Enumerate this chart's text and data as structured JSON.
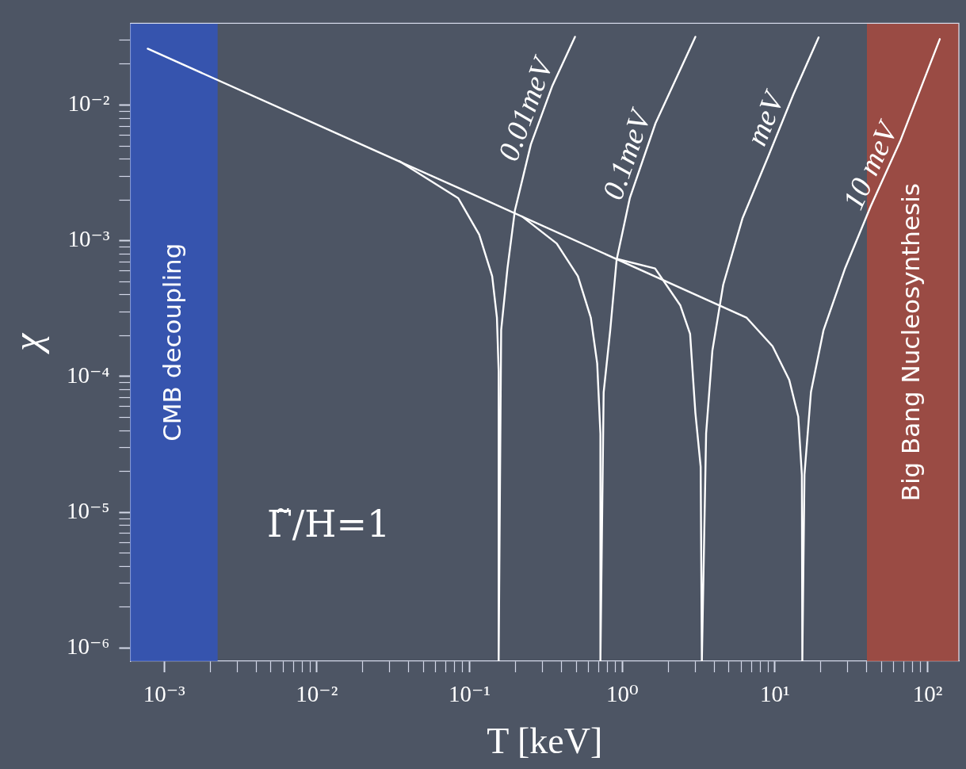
{
  "chart_data": {
    "type": "line",
    "xlabel": "T [keV]",
    "ylabel": "χ",
    "log": "xy",
    "legend": false,
    "marker": "none",
    "line_style": "solid",
    "xlim": [
      0.0006,
      160
    ],
    "ylim": [
      8e-07,
      0.04
    ],
    "xticks": [
      {
        "value": 0.001,
        "label": "10⁻³"
      },
      {
        "value": 0.002,
        "label": null
      },
      {
        "value": 0.003,
        "label": null
      },
      {
        "value": 0.004,
        "label": null
      },
      {
        "value": 0.005,
        "label": null
      },
      {
        "value": 0.006,
        "label": null
      },
      {
        "value": 0.007,
        "label": null
      },
      {
        "value": 0.008,
        "label": null
      },
      {
        "value": 0.009,
        "label": null
      },
      {
        "value": 0.01,
        "label": "10⁻²"
      },
      {
        "value": 0.02,
        "label": null
      },
      {
        "value": 0.03,
        "label": null
      },
      {
        "value": 0.04,
        "label": null
      },
      {
        "value": 0.05,
        "label": null
      },
      {
        "value": 0.06,
        "label": null
      },
      {
        "value": 0.07,
        "label": null
      },
      {
        "value": 0.08,
        "label": null
      },
      {
        "value": 0.09,
        "label": null
      },
      {
        "value": 0.1,
        "label": "10⁻¹"
      },
      {
        "value": 0.2,
        "label": null
      },
      {
        "value": 0.3,
        "label": null
      },
      {
        "value": 0.4,
        "label": null
      },
      {
        "value": 0.5,
        "label": null
      },
      {
        "value": 0.6,
        "label": null
      },
      {
        "value": 0.7,
        "label": null
      },
      {
        "value": 0.8,
        "label": null
      },
      {
        "value": 0.9,
        "label": null
      },
      {
        "value": 1,
        "label": "10⁰"
      },
      {
        "value": 2,
        "label": null
      },
      {
        "value": 3,
        "label": null
      },
      {
        "value": 4,
        "label": null
      },
      {
        "value": 5,
        "label": null
      },
      {
        "value": 6,
        "label": null
      },
      {
        "value": 7,
        "label": null
      },
      {
        "value": 8,
        "label": null
      },
      {
        "value": 9,
        "label": null
      },
      {
        "value": 10,
        "label": "10¹"
      },
      {
        "value": 20,
        "label": null
      },
      {
        "value": 30,
        "label": null
      },
      {
        "value": 40,
        "label": null
      },
      {
        "value": 50,
        "label": null
      },
      {
        "value": 60,
        "label": null
      },
      {
        "value": 70,
        "label": null
      },
      {
        "value": 80,
        "label": null
      },
      {
        "value": 90,
        "label": null
      },
      {
        "value": 100,
        "label": "10²"
      }
    ],
    "yticks": [
      {
        "value": 1e-06,
        "label": "10⁻⁶"
      },
      {
        "value": 2e-06,
        "label": null
      },
      {
        "value": 3e-06,
        "label": null
      },
      {
        "value": 4e-06,
        "label": null
      },
      {
        "value": 5e-06,
        "label": null
      },
      {
        "value": 6e-06,
        "label": null
      },
      {
        "value": 7e-06,
        "label": null
      },
      {
        "value": 8e-06,
        "label": null
      },
      {
        "value": 9e-06,
        "label": null
      },
      {
        "value": 1e-05,
        "label": "10⁻⁵"
      },
      {
        "value": 2e-05,
        "label": null
      },
      {
        "value": 3e-05,
        "label": null
      },
      {
        "value": 4e-05,
        "label": null
      },
      {
        "value": 5e-05,
        "label": null
      },
      {
        "value": 6e-05,
        "label": null
      },
      {
        "value": 7e-05,
        "label": null
      },
      {
        "value": 8e-05,
        "label": null
      },
      {
        "value": 9e-05,
        "label": null
      },
      {
        "value": 0.0001,
        "label": "10⁻⁴"
      },
      {
        "value": 0.0002,
        "label": null
      },
      {
        "value": 0.0003,
        "label": null
      },
      {
        "value": 0.0004,
        "label": null
      },
      {
        "value": 0.0005,
        "label": null
      },
      {
        "value": 0.0006,
        "label": null
      },
      {
        "value": 0.0007,
        "label": null
      },
      {
        "value": 0.0008,
        "label": null
      },
      {
        "value": 0.0009,
        "label": null
      },
      {
        "value": 0.001,
        "label": "10⁻³"
      },
      {
        "value": 0.002,
        "label": null
      },
      {
        "value": 0.003,
        "label": null
      },
      {
        "value": 0.004,
        "label": null
      },
      {
        "value": 0.005,
        "label": null
      },
      {
        "value": 0.006,
        "label": null
      },
      {
        "value": 0.007,
        "label": null
      },
      {
        "value": 0.008,
        "label": null
      },
      {
        "value": 0.009,
        "label": null
      },
      {
        "value": 0.01,
        "label": "10⁻²"
      },
      {
        "value": 0.02,
        "label": null
      },
      {
        "value": 0.03,
        "label": null
      }
    ],
    "bands": [
      {
        "axis": "x",
        "from": 0.0006,
        "to": 0.00224,
        "label": "CMB decoupling",
        "color": "#3355bb"
      },
      {
        "axis": "x",
        "from": 40,
        "to": 160,
        "label": "Big Bang Nucleosynthesis",
        "color": "#a84a3e"
      }
    ],
    "annotations": [
      "Γ̃/H=1"
    ],
    "series": [
      {
        "name": "0.01meV",
        "color": "#ffffff",
        "x": [
          0.0347,
          0.0843,
          0.1156,
          0.1406,
          0.151,
          0.155,
          0.155,
          0.161,
          0.177,
          0.198,
          0.252,
          0.347,
          0.49
        ],
        "values": [
          0.00386,
          0.00206,
          0.00111,
          0.000548,
          0.000272,
          0.000109,
          8e-07,
          0.00022,
          0.000626,
          0.00167,
          0.00513,
          0.0137,
          0.0318
        ]
      },
      {
        "name": "0.1meV",
        "color": "#ffffff",
        "x": [
          0.221,
          0.372,
          0.512,
          0.622,
          0.685,
          0.719,
          0.719,
          0.755,
          0.834,
          0.918,
          1.12,
          1.65,
          3.01
        ],
        "values": [
          0.00151,
          0.000955,
          0.000548,
          0.000272,
          0.000125,
          3.79e-05,
          8e-07,
          7.64e-05,
          0.00022,
          0.000724,
          0.00206,
          0.00734,
          0.0318
        ]
      },
      {
        "name": "meV",
        "color": "#ffffff",
        "x": [
          0.929,
          1.64,
          2.4,
          2.78,
          3.01,
          3.26,
          3.32,
          3.54,
          3.89,
          4.58,
          6.12,
          9.02,
          13.2,
          19.3
        ],
        "values": [
          0.000734,
          0.000626,
          0.000334,
          0.000206,
          5.41e-05,
          2.17e-05,
          8e-07,
          3.81e-05,
          0.000155,
          0.000474,
          0.00146,
          0.00417,
          0.012,
          0.0315
        ]
      },
      {
        "name": "10 meV",
        "color": "#ffffff",
        "x": [
          0.00078,
          0.092,
          6.5,
          9.64,
          12.4,
          14.2,
          15,
          15.1,
          15.6,
          17.2,
          20.8,
          28.8,
          42.4,
          66.5,
          120
        ],
        "values": [
          0.026,
          0.00235,
          0.000272,
          0.000167,
          9.44e-05,
          5.07e-05,
          1.88e-05,
          8e-07,
          1.9e-05,
          7.69e-05,
          0.00022,
          0.000629,
          0.0018,
          0.00552,
          0.0306
        ]
      }
    ]
  }
}
